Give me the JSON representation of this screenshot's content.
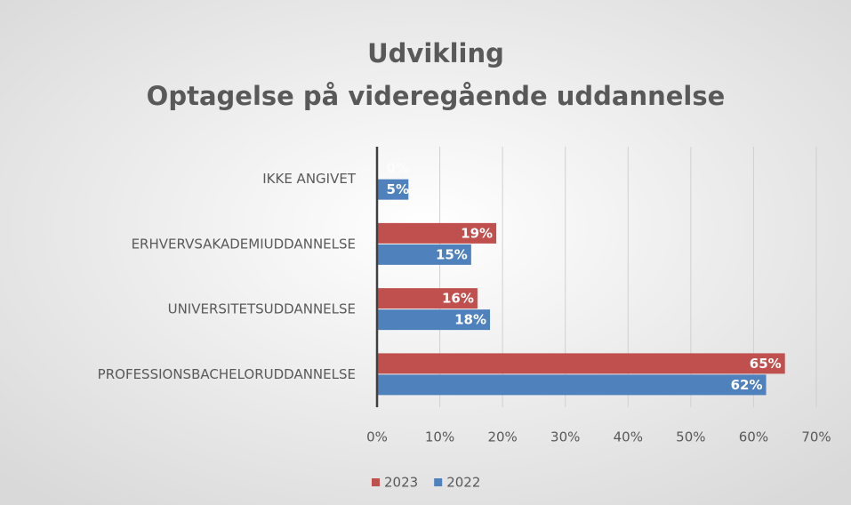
{
  "chart_data": {
    "type": "bar",
    "orientation": "horizontal",
    "title": [
      "Udvikling",
      "Optagelse på videregående uddannelse"
    ],
    "categories": [
      "IKKE ANGIVET",
      "ERHVERVSAKADEMIUDDANNELSE",
      "UNIVERSITETSUDDANNELSE",
      "PROFESSIONSBACHELORUDDANNELSE"
    ],
    "series": [
      {
        "name": "2023",
        "color": "#c0504d",
        "values": [
          0,
          19,
          16,
          65
        ],
        "value_labels": [
          "0%",
          "19%",
          "16%",
          "65%"
        ]
      },
      {
        "name": "2022",
        "color": "#4f81bd",
        "values": [
          5,
          15,
          18,
          62
        ],
        "value_labels": [
          "5%",
          "15%",
          "18%",
          "62%"
        ]
      }
    ],
    "xlim": [
      0,
      70
    ],
    "xticks": [
      {
        "value": 0,
        "label": "0%"
      },
      {
        "value": 10,
        "label": "10%"
      },
      {
        "value": 20,
        "label": "20%"
      },
      {
        "value": 30,
        "label": "30%"
      },
      {
        "value": 40,
        "label": "40%"
      },
      {
        "value": 50,
        "label": "50%"
      },
      {
        "value": 60,
        "label": "60%"
      },
      {
        "value": 70,
        "label": "70%"
      }
    ],
    "grid": true,
    "legend": "bottom"
  }
}
